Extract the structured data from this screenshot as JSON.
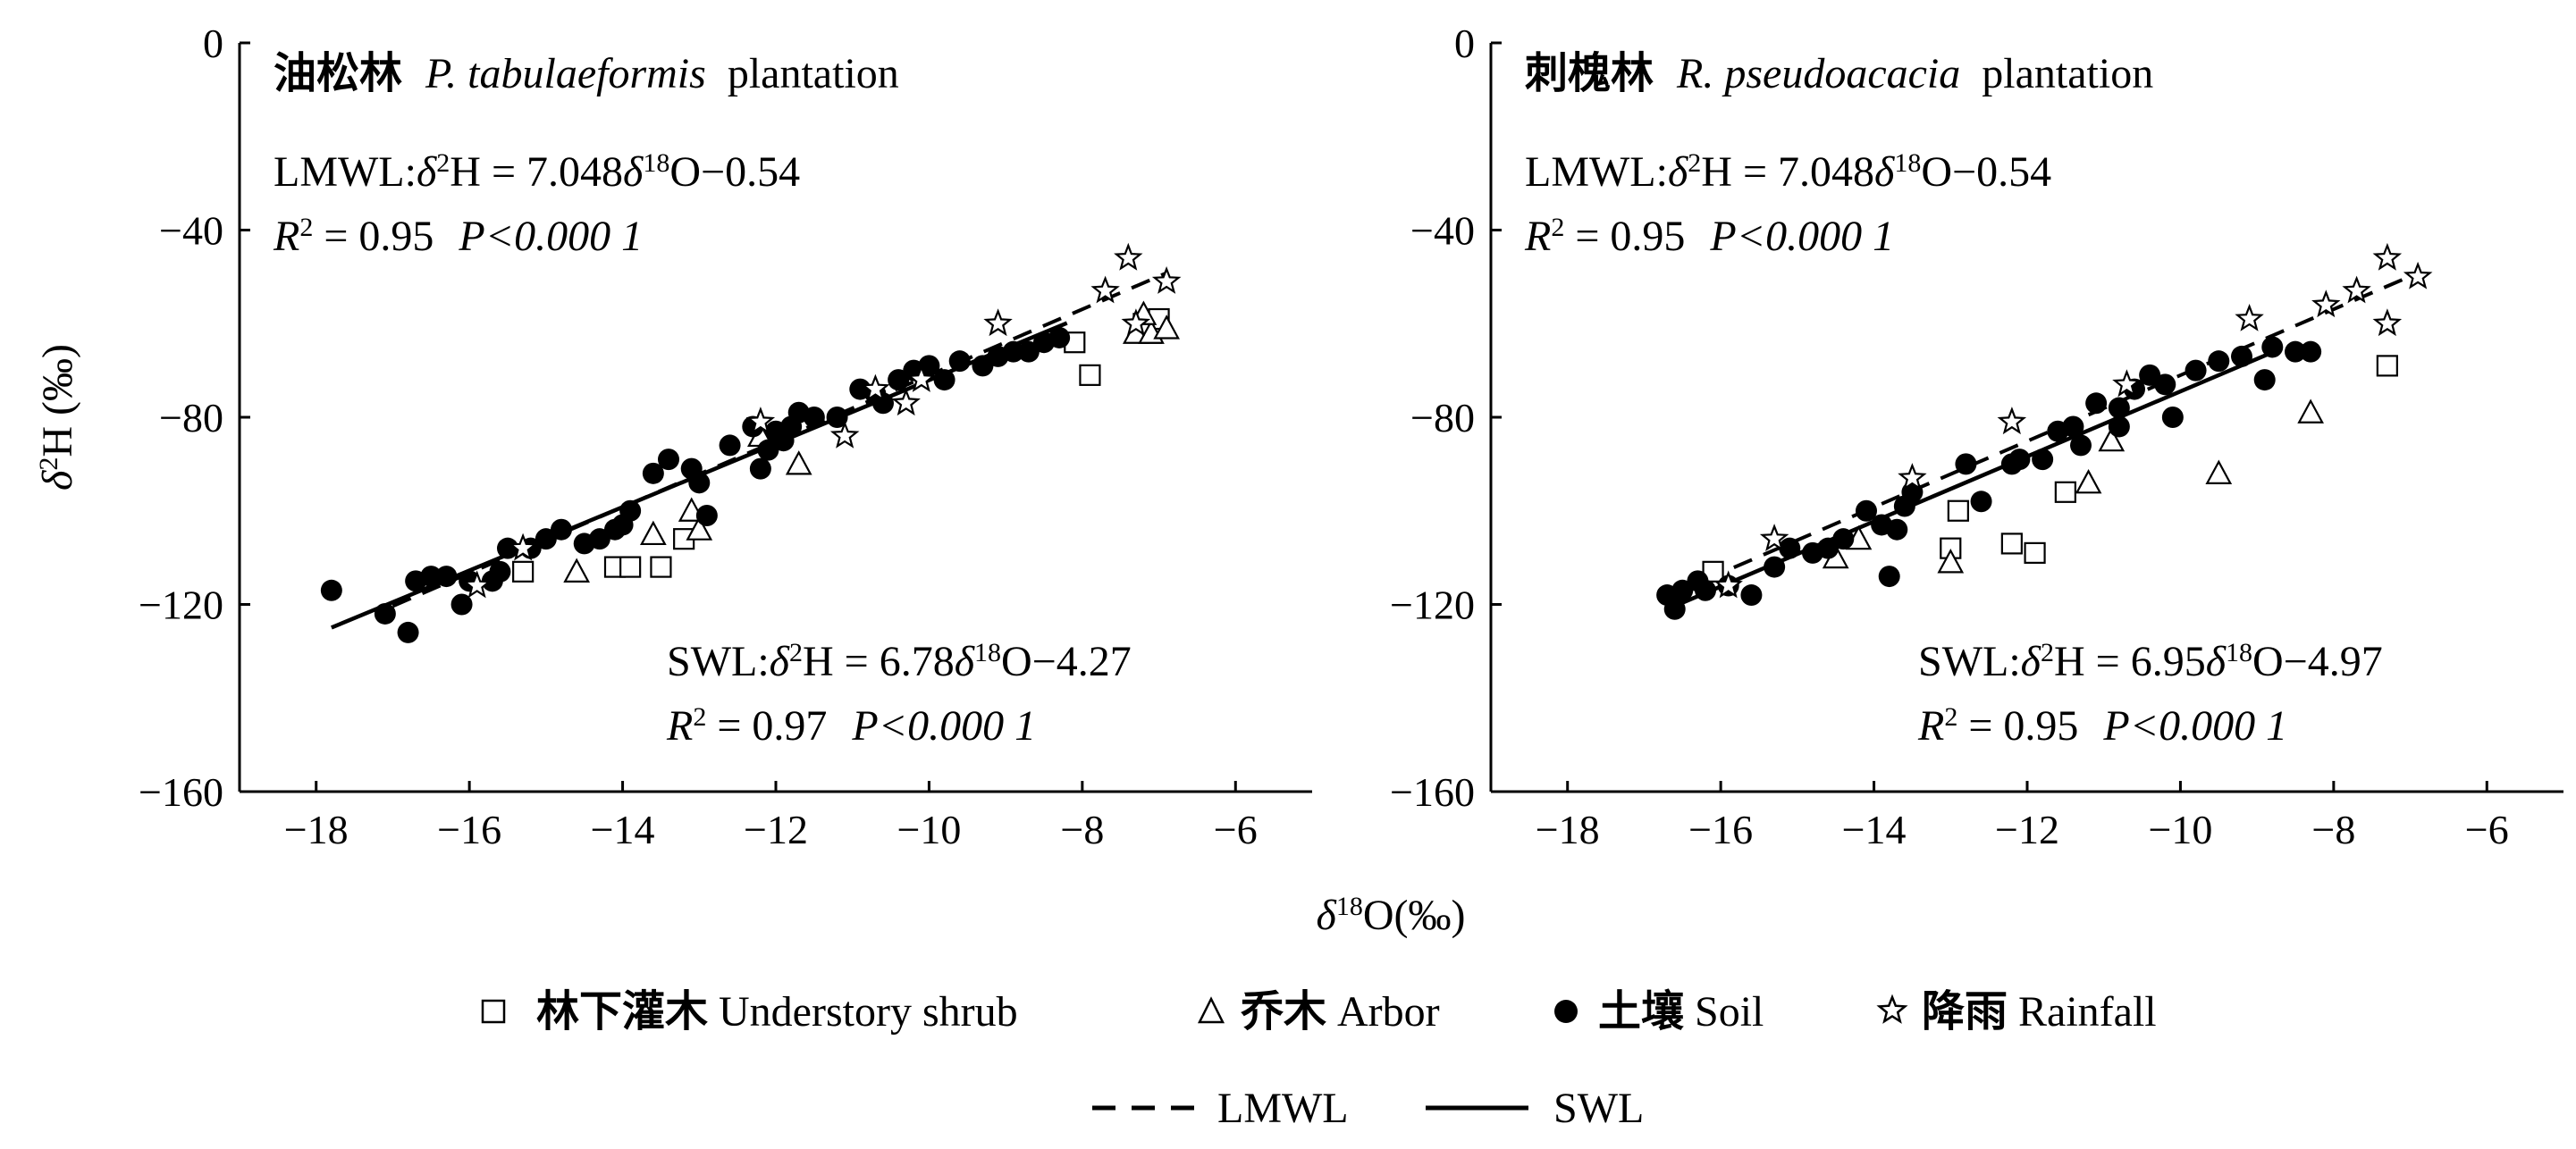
{
  "figure": {
    "x_axis_label_html": [
      "δ",
      "18",
      "O(‰)"
    ],
    "y_axis_label_html": [
      "δ",
      "2",
      "H (‰)"
    ]
  },
  "legend": {
    "markers": [
      {
        "symbol": "square-open",
        "zh": "林下灌木",
        "en": "Understory shrub"
      },
      {
        "symbol": "triangle-open",
        "zh": "乔木",
        "en": "Arbor"
      },
      {
        "symbol": "circle-filled",
        "zh": "土壤",
        "en": "Soil"
      },
      {
        "symbol": "star-open",
        "zh": "降雨",
        "en": "Rainfall"
      }
    ],
    "lines": [
      {
        "style": "dashed",
        "label": "LMWL"
      },
      {
        "style": "solid",
        "label": "SWL"
      }
    ]
  },
  "chart_data": [
    {
      "type": "scatter",
      "title_zh": "油松林",
      "title_species": "P. tabulaeformis",
      "title_rest": "plantation",
      "xlim": [
        -19,
        -5
      ],
      "ylim": [
        -160,
        0
      ],
      "xticks": [
        -18,
        -16,
        -14,
        -12,
        -10,
        -8,
        -6
      ],
      "yticks": [
        0,
        -40,
        -80,
        -120,
        -160
      ],
      "lmwl": {
        "eq_prefix": "LMWL:",
        "slope_text": "7.048",
        "intercept_text": "0.54",
        "r2": "0.95",
        "p": "P<0.000 1",
        "slope": 7.048,
        "intercept": -0.54,
        "x_range": [
          -17.0,
          -6.9
        ]
      },
      "swl": {
        "eq_prefix": "SWL:",
        "slope_text": "6.78",
        "intercept_text": "4.27",
        "r2": "0.97",
        "p": "P<0.000 1",
        "slope": 6.78,
        "intercept": -4.27,
        "x_range": [
          -17.8,
          -8.2
        ]
      },
      "series": [
        {
          "name": "林下灌木 Understory shrub",
          "symbol": "square-open",
          "points": [
            [
              -15.3,
              -113
            ],
            [
              -14.1,
              -112
            ],
            [
              -13.9,
              -112
            ],
            [
              -13.5,
              -112
            ],
            [
              -13.2,
              -106
            ],
            [
              -8.1,
              -64
            ],
            [
              -7.9,
              -71
            ],
            [
              -7.2,
              -60
            ],
            [
              -7.1,
              -62
            ],
            [
              -7.0,
              -59
            ]
          ]
        },
        {
          "name": "乔木 Arbor",
          "symbol": "triangle-open",
          "points": [
            [
              -14.6,
              -113
            ],
            [
              -13.6,
              -105
            ],
            [
              -13.0,
              -104
            ],
            [
              -13.1,
              -100
            ],
            [
              -12.2,
              -84
            ],
            [
              -11.7,
              -90
            ],
            [
              -7.3,
              -62
            ],
            [
              -7.1,
              -62
            ],
            [
              -6.9,
              -61
            ],
            [
              -7.2,
              -58
            ]
          ]
        },
        {
          "name": "土壤 Soil",
          "symbol": "circle-filled",
          "points": [
            [
              -17.8,
              -117
            ],
            [
              -17.1,
              -122
            ],
            [
              -16.8,
              -126
            ],
            [
              -16.7,
              -115
            ],
            [
              -16.5,
              -114
            ],
            [
              -16.3,
              -114
            ],
            [
              -16.1,
              -120
            ],
            [
              -16.0,
              -115
            ],
            [
              -15.7,
              -115
            ],
            [
              -15.6,
              -113
            ],
            [
              -15.5,
              -108
            ],
            [
              -15.2,
              -108
            ],
            [
              -15.0,
              -106
            ],
            [
              -14.8,
              -104
            ],
            [
              -14.5,
              -107
            ],
            [
              -14.3,
              -106
            ],
            [
              -14.1,
              -104
            ],
            [
              -14.0,
              -103
            ],
            [
              -13.9,
              -100
            ],
            [
              -13.6,
              -92
            ],
            [
              -13.4,
              -89
            ],
            [
              -13.1,
              -91
            ],
            [
              -13.0,
              -94
            ],
            [
              -12.9,
              -101
            ],
            [
              -12.6,
              -86
            ],
            [
              -12.3,
              -82
            ],
            [
              -12.2,
              -91
            ],
            [
              -12.1,
              -87
            ],
            [
              -12.0,
              -83
            ],
            [
              -11.9,
              -85
            ],
            [
              -11.8,
              -82
            ],
            [
              -11.7,
              -79
            ],
            [
              -11.5,
              -80
            ],
            [
              -11.2,
              -80
            ],
            [
              -10.9,
              -74
            ],
            [
              -10.7,
              -75
            ],
            [
              -10.6,
              -77
            ],
            [
              -10.4,
              -72
            ],
            [
              -10.2,
              -70
            ],
            [
              -10.0,
              -69
            ],
            [
              -9.8,
              -72
            ],
            [
              -9.6,
              -68
            ],
            [
              -9.3,
              -69
            ],
            [
              -9.1,
              -67
            ],
            [
              -8.9,
              -66
            ],
            [
              -8.7,
              -66
            ],
            [
              -8.5,
              -64
            ],
            [
              -8.3,
              -63
            ]
          ]
        },
        {
          "name": "降雨 Rainfall",
          "symbol": "star-open",
          "points": [
            [
              -15.9,
              -116
            ],
            [
              -15.3,
              -108
            ],
            [
              -12.2,
              -81
            ],
            [
              -11.1,
              -84
            ],
            [
              -10.7,
              -74
            ],
            [
              -10.3,
              -77
            ],
            [
              -10.1,
              -72
            ],
            [
              -9.1,
              -60
            ],
            [
              -7.7,
              -53
            ],
            [
              -7.4,
              -46
            ],
            [
              -7.3,
              -60
            ],
            [
              -6.9,
              -51
            ]
          ]
        }
      ]
    },
    {
      "type": "scatter",
      "title_zh": "刺槐林",
      "title_species": "R. pseudoacacia",
      "title_rest": "plantation",
      "xlim": [
        -19,
        -5
      ],
      "ylim": [
        -160,
        0
      ],
      "xticks": [
        -18,
        -16,
        -14,
        -12,
        -10,
        -8,
        -6
      ],
      "yticks": [
        0,
        -40,
        -80,
        -120,
        -160
      ],
      "lmwl": {
        "eq_prefix": "LMWL:",
        "slope_text": "7.048",
        "intercept_text": "0.54",
        "r2": "0.95",
        "p": "P<0.000 1",
        "slope": 7.048,
        "intercept": -0.54,
        "x_range": [
          -16.6,
          -6.9
        ]
      },
      "swl": {
        "eq_prefix": "SWL:",
        "slope_text": "6.95",
        "intercept_text": "4.97",
        "r2": "0.95",
        "p": "P<0.000 1",
        "slope": 6.95,
        "intercept": -4.97,
        "x_range": [
          -16.7,
          -8.8
        ]
      },
      "series": [
        {
          "name": "林下灌木 Understory shrub",
          "symbol": "square-open",
          "points": [
            [
              -16.1,
              -113
            ],
            [
              -13.0,
              -108
            ],
            [
              -12.9,
              -100
            ],
            [
              -12.2,
              -107
            ],
            [
              -11.9,
              -109
            ],
            [
              -11.5,
              -96
            ],
            [
              -7.3,
              -69
            ]
          ]
        },
        {
          "name": "乔木 Arbor",
          "symbol": "triangle-open",
          "points": [
            [
              -14.5,
              -110
            ],
            [
              -14.2,
              -106
            ],
            [
              -13.0,
              -111
            ],
            [
              -11.2,
              -94
            ],
            [
              -10.9,
              -85
            ],
            [
              -9.5,
              -92
            ],
            [
              -8.3,
              -79
            ]
          ]
        },
        {
          "name": "土壤 Soil",
          "symbol": "circle-filled",
          "points": [
            [
              -16.7,
              -118
            ],
            [
              -16.6,
              -121
            ],
            [
              -16.5,
              -117
            ],
            [
              -16.3,
              -115
            ],
            [
              -16.2,
              -117
            ],
            [
              -15.9,
              -116
            ],
            [
              -15.6,
              -118
            ],
            [
              -15.3,
              -112
            ],
            [
              -15.1,
              -108
            ],
            [
              -14.8,
              -109
            ],
            [
              -14.6,
              -108
            ],
            [
              -14.4,
              -106
            ],
            [
              -14.1,
              -100
            ],
            [
              -13.9,
              -103
            ],
            [
              -13.8,
              -114
            ],
            [
              -13.7,
              -104
            ],
            [
              -13.6,
              -99
            ],
            [
              -13.5,
              -96
            ],
            [
              -12.8,
              -90
            ],
            [
              -12.6,
              -98
            ],
            [
              -12.2,
              -90
            ],
            [
              -12.1,
              -89
            ],
            [
              -11.8,
              -89
            ],
            [
              -11.6,
              -83
            ],
            [
              -11.4,
              -82
            ],
            [
              -11.3,
              -86
            ],
            [
              -11.1,
              -77
            ],
            [
              -10.8,
              -78
            ],
            [
              -10.8,
              -82
            ],
            [
              -10.6,
              -74
            ],
            [
              -10.4,
              -71
            ],
            [
              -10.2,
              -73
            ],
            [
              -10.1,
              -80
            ],
            [
              -9.8,
              -70
            ],
            [
              -9.5,
              -68
            ],
            [
              -9.2,
              -67
            ],
            [
              -8.9,
              -72
            ],
            [
              -8.8,
              -65
            ],
            [
              -8.5,
              -66
            ],
            [
              -8.3,
              -66
            ]
          ]
        },
        {
          "name": "降雨 Rainfall",
          "symbol": "star-open",
          "points": [
            [
              -15.9,
              -116
            ],
            [
              -15.3,
              -106
            ],
            [
              -13.5,
              -93
            ],
            [
              -12.2,
              -81
            ],
            [
              -10.7,
              -73
            ],
            [
              -9.1,
              -59
            ],
            [
              -8.1,
              -56
            ],
            [
              -7.7,
              -53
            ],
            [
              -7.3,
              -46
            ],
            [
              -7.3,
              -60
            ],
            [
              -6.9,
              -50
            ]
          ]
        }
      ]
    }
  ]
}
